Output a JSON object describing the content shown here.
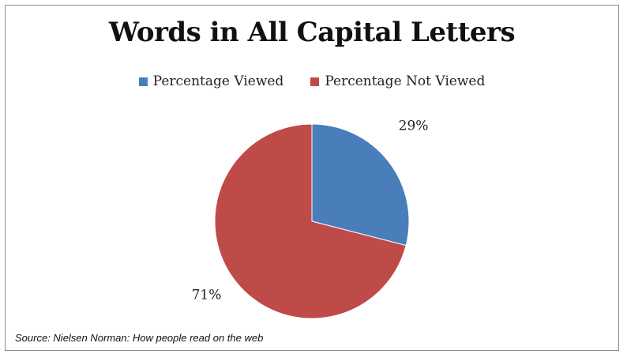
{
  "chart_data": {
    "type": "pie",
    "title": "Words in All Capital Letters",
    "categories": [
      "Percentage Viewed",
      "Percentage Not Viewed"
    ],
    "values": [
      29,
      71
    ],
    "data_labels": [
      "29%",
      "71%"
    ],
    "colors": [
      "#4a7ebb",
      "#be4b48"
    ],
    "legend_position": "top"
  },
  "source_note": "Source: Nielsen Norman: How people read on the web"
}
